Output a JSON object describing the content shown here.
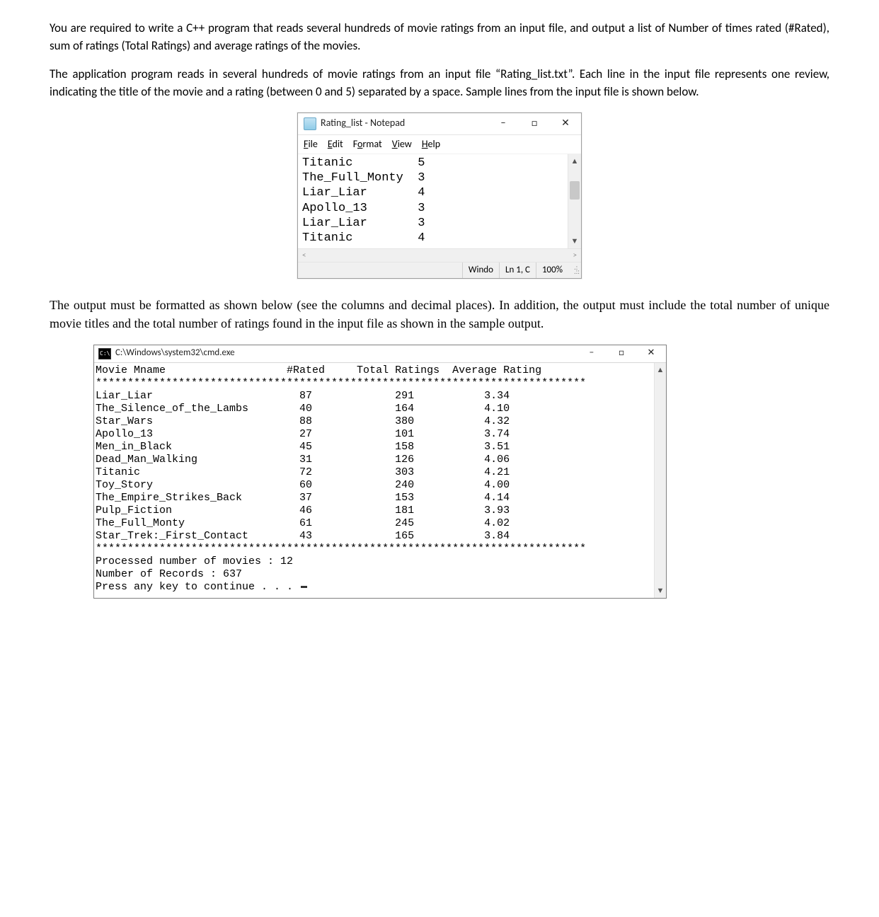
{
  "paragraphs": {
    "p1": "You are required to write a C++ program that reads several hundreds of movie ratings from an input file, and output a list of Number of times rated (#Rated), sum of ratings (Total Ratings) and average ratings of the movies.",
    "p2": "The application program reads in several hundreds of movie ratings from an input file “Rating_list.txt”.  Each line in the input file represents one review, indicating the title of the movie and a rating (between 0 and 5) separated by a space. Sample lines from the input file is shown below.",
    "p3": "The output must be formatted as shown below (see the columns and decimal places). In addition, the output must include the total number of unique movie titles and the total number of ratings found in the input file as shown in the sample output."
  },
  "notepad": {
    "title": "Rating_list - Notepad",
    "menu": {
      "file": "File",
      "file_u": "F",
      "edit": "Edit",
      "edit_u": "E",
      "format": "Format",
      "format_u": "o",
      "view": "View",
      "view_u": "V",
      "help": "Help",
      "help_u": "H"
    },
    "lines": [
      {
        "name": "Titanic",
        "rating": "5"
      },
      {
        "name": "The_Full_Monty",
        "rating": "3"
      },
      {
        "name": "Liar_Liar",
        "rating": "4"
      },
      {
        "name": "Apollo_13",
        "rating": "3"
      },
      {
        "name": "Liar_Liar",
        "rating": "3"
      },
      {
        "name": "Titanic",
        "rating": "4"
      }
    ],
    "status": {
      "os": "Windo",
      "pos": "Ln 1, C",
      "zoom": "100%"
    }
  },
  "console": {
    "title": "C:\\Windows\\system32\\cmd.exe",
    "header": {
      "c1": "Movie Mname",
      "c2": "#Rated",
      "c3": "Total Ratings",
      "c4": "Average Rating"
    },
    "sep": "*****************************************************************************",
    "rows": [
      {
        "name": "Liar_Liar",
        "rated": "87",
        "total": "291",
        "avg": "3.34"
      },
      {
        "name": "The_Silence_of_the_Lambs",
        "rated": "40",
        "total": "164",
        "avg": "4.10"
      },
      {
        "name": "Star_Wars",
        "rated": "88",
        "total": "380",
        "avg": "4.32"
      },
      {
        "name": "Apollo_13",
        "rated": "27",
        "total": "101",
        "avg": "3.74"
      },
      {
        "name": "Men_in_Black",
        "rated": "45",
        "total": "158",
        "avg": "3.51"
      },
      {
        "name": "Dead_Man_Walking",
        "rated": "31",
        "total": "126",
        "avg": "4.06"
      },
      {
        "name": "Titanic",
        "rated": "72",
        "total": "303",
        "avg": "4.21"
      },
      {
        "name": "Toy_Story",
        "rated": "60",
        "total": "240",
        "avg": "4.00"
      },
      {
        "name": "The_Empire_Strikes_Back",
        "rated": "37",
        "total": "153",
        "avg": "4.14"
      },
      {
        "name": "Pulp_Fiction",
        "rated": "46",
        "total": "181",
        "avg": "3.93"
      },
      {
        "name": "The_Full_Monty",
        "rated": "61",
        "total": "245",
        "avg": "4.02"
      },
      {
        "name": "Star_Trek:_First_Contact",
        "rated": "43",
        "total": "165",
        "avg": "3.84"
      }
    ],
    "footer": {
      "movies_label": "Processed number of movies : ",
      "movies_value": "12",
      "records_label": "Number of Records : ",
      "records_value": "637",
      "prompt": "Press any key to continue . . . "
    }
  },
  "columns": {
    "notepad_name_width": 16,
    "console_name_width": 30,
    "console_rated_width": 8,
    "console_total_width": 16,
    "console_avg_width": 15
  }
}
